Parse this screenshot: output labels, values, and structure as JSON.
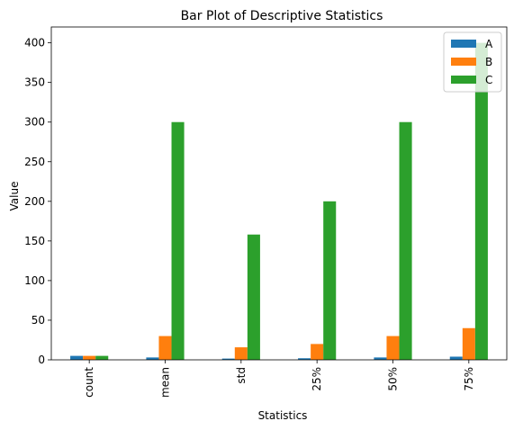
{
  "chart_data": {
    "type": "bar",
    "title": "Bar Plot of Descriptive Statistics",
    "xlabel": "Statistics",
    "ylabel": "Value",
    "categories": [
      "count",
      "mean",
      "std",
      "25%",
      "50%",
      "75%"
    ],
    "series": [
      {
        "name": "A",
        "color": "#1f77b4",
        "values": [
          5,
          3,
          1.58,
          2,
          3,
          4
        ]
      },
      {
        "name": "B",
        "color": "#ff7f0e",
        "values": [
          5,
          30,
          15.8,
          20,
          30,
          40
        ]
      },
      {
        "name": "C",
        "color": "#2ca02c",
        "values": [
          5,
          300,
          158.1,
          200,
          300,
          400
        ]
      }
    ],
    "ylim": [
      0,
      420
    ],
    "yticks": [
      0,
      50,
      100,
      150,
      200,
      250,
      300,
      350,
      400
    ],
    "grid": false,
    "legend_position": "top-right"
  }
}
